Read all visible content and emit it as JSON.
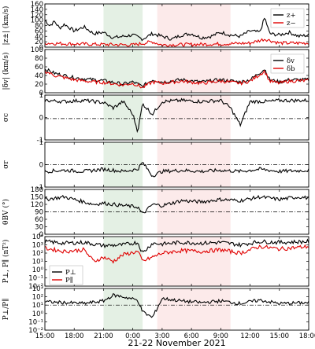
{
  "chart_data": {
    "type": "line",
    "xlabel": "21-22 November 2021",
    "x_ticks": [
      "15:00",
      "18:00",
      "21:00",
      "0:00",
      "3:00",
      "6:00",
      "9:00",
      "12:00",
      "15:00",
      "18:00"
    ],
    "x_range_hours": [
      0,
      27
    ],
    "shaded_intervals": [
      {
        "color": "#2e8b2e",
        "from": "21:00",
        "to": "1:00"
      },
      {
        "color": "#e85a5a",
        "from": "2:30",
        "to": "10:00"
      }
    ],
    "panels": [
      {
        "id": "z",
        "ylabel": "|z±| (km/s)",
        "ylim": [
          0,
          160
        ],
        "y_ticks": [
          "0",
          "20",
          "40",
          "60",
          "80",
          "100",
          "120",
          "140",
          "160"
        ],
        "legend": [
          "z+",
          "z−"
        ],
        "legend_pos": "top-right",
        "series": [
          {
            "name": "z+",
            "color": "#000000",
            "keys": [
              [
                0,
                100
              ],
              [
                0.5,
                80
              ],
              [
                1,
                95
              ],
              [
                1.5,
                70
              ],
              [
                2,
                85
              ],
              [
                3,
                60
              ],
              [
                4,
                75
              ],
              [
                5,
                50
              ],
              [
                6,
                55
              ],
              [
                7,
                35
              ],
              [
                8,
                40
              ],
              [
                9,
                45
              ],
              [
                10,
                30
              ],
              [
                11,
                50
              ],
              [
                12,
                40
              ],
              [
                13,
                30
              ],
              [
                14,
                45
              ],
              [
                15,
                50
              ],
              [
                16,
                35
              ],
              [
                17,
                40
              ],
              [
                18,
                55
              ],
              [
                19,
                45
              ],
              [
                20,
                40
              ],
              [
                21,
                60
              ],
              [
                22,
                55
              ],
              [
                22.5,
                110
              ],
              [
                23,
                50
              ],
              [
                24,
                45
              ],
              [
                25,
                55
              ],
              [
                26,
                40
              ],
              [
                27,
                45
              ]
            ]
          },
          {
            "name": "z−",
            "color": "#e00000",
            "keys": [
              [
                0,
                15
              ],
              [
                3,
                12
              ],
              [
                6,
                10
              ],
              [
                9,
                8
              ],
              [
                11,
                20
              ],
              [
                12,
                8
              ],
              [
                15,
                10
              ],
              [
                18,
                12
              ],
              [
                21,
                15
              ],
              [
                22.5,
                30
              ],
              [
                24,
                15
              ],
              [
                27,
                15
              ]
            ]
          }
        ]
      },
      {
        "id": "dv",
        "ylabel": "|δv| (km/s)",
        "ylim": [
          0,
          100
        ],
        "y_ticks": [
          "0",
          "20",
          "40",
          "60",
          "80",
          "100"
        ],
        "legend": [
          "δv",
          "δb"
        ],
        "legend_pos": "top-right",
        "series": [
          {
            "name": "δv",
            "color": "#000000",
            "keys": [
              [
                0,
                55
              ],
              [
                1,
                45
              ],
              [
                2,
                40
              ],
              [
                3,
                35
              ],
              [
                5,
                30
              ],
              [
                6,
                28
              ],
              [
                8,
                20
              ],
              [
                9,
                25
              ],
              [
                10,
                15
              ],
              [
                11,
                30
              ],
              [
                12,
                25
              ],
              [
                14,
                30
              ],
              [
                16,
                25
              ],
              [
                18,
                30
              ],
              [
                20,
                25
              ],
              [
                21,
                30
              ],
              [
                22.5,
                55
              ],
              [
                23,
                30
              ],
              [
                24,
                25
              ],
              [
                25,
                30
              ],
              [
                27,
                30
              ]
            ]
          },
          {
            "name": "δb",
            "color": "#e00000",
            "keys": [
              [
                0,
                50
              ],
              [
                1,
                40
              ],
              [
                2,
                35
              ],
              [
                3,
                30
              ],
              [
                5,
                25
              ],
              [
                6,
                24
              ],
              [
                8,
                18
              ],
              [
                9,
                22
              ],
              [
                10,
                12
              ],
              [
                11,
                25
              ],
              [
                12,
                22
              ],
              [
                14,
                27
              ],
              [
                16,
                22
              ],
              [
                18,
                27
              ],
              [
                20,
                22
              ],
              [
                21,
                27
              ],
              [
                22.5,
                50
              ],
              [
                23,
                27
              ],
              [
                24,
                22
              ],
              [
                25,
                27
              ],
              [
                27,
                28
              ]
            ]
          }
        ]
      },
      {
        "id": "sigma_c",
        "ylabel": "σc",
        "ylim": [
          -1,
          1.1
        ],
        "y_ticks": [
          "-1",
          "0",
          "1"
        ],
        "ref_line": 0,
        "series": [
          {
            "name": "",
            "color": "#000000",
            "keys": [
              [
                0,
                0.85
              ],
              [
                2,
                0.8
              ],
              [
                4,
                0.85
              ],
              [
                6,
                0.75
              ],
              [
                7,
                0.5
              ],
              [
                8,
                0.8
              ],
              [
                9,
                0.2
              ],
              [
                9.5,
                -0.6
              ],
              [
                10,
                0.7
              ],
              [
                11,
                0.2
              ],
              [
                12,
                0.8
              ],
              [
                14,
                0.85
              ],
              [
                16,
                0.8
              ],
              [
                18,
                0.85
              ],
              [
                19,
                0.5
              ],
              [
                20,
                -0.3
              ],
              [
                21,
                0.8
              ],
              [
                23,
                0.8
              ],
              [
                24,
                0.85
              ],
              [
                27,
                0.85
              ]
            ]
          }
        ]
      },
      {
        "id": "sigma_r",
        "ylabel": "σr",
        "ylim": [
          -1,
          1
        ],
        "y_ticks": [
          "-1",
          "0",
          "1"
        ],
        "ref_line": 0,
        "series": [
          {
            "name": "",
            "color": "#000000",
            "keys": [
              [
                0,
                -0.3
              ],
              [
                2,
                -0.25
              ],
              [
                4,
                -0.3
              ],
              [
                6,
                -0.2
              ],
              [
                8,
                -0.3
              ],
              [
                9.5,
                -0.2
              ],
              [
                10,
                0.1
              ],
              [
                11,
                -0.5
              ],
              [
                12,
                -0.3
              ],
              [
                14,
                -0.25
              ],
              [
                16,
                -0.3
              ],
              [
                18,
                -0.25
              ],
              [
                20,
                -0.3
              ],
              [
                22,
                -0.2
              ],
              [
                24,
                -0.3
              ],
              [
                27,
                -0.25
              ]
            ]
          }
        ]
      },
      {
        "id": "theta",
        "ylabel": "θBV (°)",
        "ylim": [
          0,
          180
        ],
        "y_ticks": [
          "0",
          "30",
          "60",
          "90",
          "120",
          "150",
          "180"
        ],
        "ref_line": 90,
        "series": [
          {
            "name": "",
            "color": "#000000",
            "keys": [
              [
                0,
                140
              ],
              [
                2,
                150
              ],
              [
                4,
                130
              ],
              [
                5,
                120
              ],
              [
                6,
                125
              ],
              [
                8,
                115
              ],
              [
                9.5,
                110
              ],
              [
                10,
                80
              ],
              [
                11,
                120
              ],
              [
                12,
                115
              ],
              [
                14,
                135
              ],
              [
                16,
                130
              ],
              [
                18,
                140
              ],
              [
                20,
                135
              ],
              [
                22,
                150
              ],
              [
                24,
                140
              ],
              [
                26,
                150
              ],
              [
                27,
                145
              ]
            ]
          }
        ]
      },
      {
        "id": "pressure",
        "ylabel": "P⊥, P∥ (nT²)",
        "ylim_log10": [
          -2,
          4
        ],
        "y_ticks": [
          "10⁻²",
          "10⁻¹",
          "10⁰",
          "10¹",
          "10²",
          "10³",
          "10⁴"
        ],
        "legend": [
          "P⊥",
          "P∥"
        ],
        "legend_pos": "lower-left",
        "series": [
          {
            "name": "P⊥",
            "color": "#000000",
            "keys": [
              [
                0,
                3.4
              ],
              [
                2,
                3.2
              ],
              [
                4,
                3.3
              ],
              [
                6,
                2.9
              ],
              [
                8,
                3.0
              ],
              [
                9.5,
                3.3
              ],
              [
                10,
                2.0
              ],
              [
                11,
                3.2
              ],
              [
                12,
                3.1
              ],
              [
                14,
                3.3
              ],
              [
                16,
                3.2
              ],
              [
                18,
                3.3
              ],
              [
                20,
                3.0
              ],
              [
                22,
                3.4
              ],
              [
                24,
                3.3
              ],
              [
                27,
                3.4
              ]
            ]
          },
          {
            "name": "P∥",
            "color": "#e00000",
            "keys": [
              [
                0,
                2.6
              ],
              [
                2,
                2.2
              ],
              [
                4,
                2.4
              ],
              [
                5,
                1.0
              ],
              [
                6,
                1.5
              ],
              [
                7,
                1.0
              ],
              [
                8,
                1.8
              ],
              [
                9.5,
                2.2
              ],
              [
                10,
                1.0
              ],
              [
                11,
                1.5
              ],
              [
                12,
                2.0
              ],
              [
                14,
                2.3
              ],
              [
                16,
                2.2
              ],
              [
                18,
                2.4
              ],
              [
                20,
                2.0
              ],
              [
                22,
                2.8
              ],
              [
                24,
                2.5
              ],
              [
                27,
                2.8
              ]
            ]
          }
        ]
      },
      {
        "id": "anisotropy",
        "ylabel": "P⊥/P∥",
        "ylim_log10": [
          -2,
          3
        ],
        "y_ticks": [
          "10⁻²",
          "10⁻¹",
          "10⁰",
          "10¹",
          "10²",
          "10³"
        ],
        "ref_line_log10": 1,
        "series": [
          {
            "name": "",
            "color": "#000000",
            "keys": [
              [
                0,
                1.4
              ],
              [
                2,
                1.3
              ],
              [
                4,
                1.2
              ],
              [
                6,
                1.5
              ],
              [
                7,
                2.2
              ],
              [
                8,
                2.0
              ],
              [
                9.5,
                1.6
              ],
              [
                10,
                0.2
              ],
              [
                11,
                -0.5
              ],
              [
                12,
                1.8
              ],
              [
                14,
                1.5
              ],
              [
                16,
                1.3
              ],
              [
                18,
                1.5
              ],
              [
                20,
                1.2
              ],
              [
                22,
                1.6
              ],
              [
                24,
                1.2
              ],
              [
                27,
                1.3
              ]
            ]
          }
        ]
      }
    ]
  }
}
